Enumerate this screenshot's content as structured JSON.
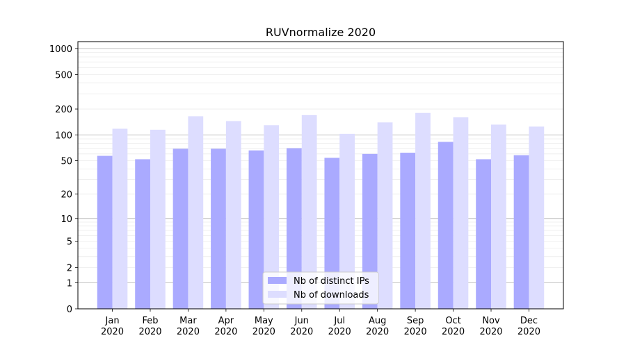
{
  "chart_data": {
    "type": "bar",
    "title": "RUVnormalize 2020",
    "xlabel": "",
    "ylabel": "",
    "y_scale": "log(1+y)",
    "ylim": [
      0,
      1200
    ],
    "y_ticks": [
      0,
      1,
      2,
      5,
      10,
      20,
      50,
      100,
      200,
      500,
      1000
    ],
    "y_tick_labels": [
      "0",
      "1",
      "2",
      "5",
      "10",
      "20",
      "50",
      "100",
      "200",
      "500",
      "1000"
    ],
    "grid": true,
    "legend_position": "bottom-center",
    "categories": [
      "Jan\n2020",
      "Feb\n2020",
      "Mar\n2020",
      "Apr\n2020",
      "May\n2020",
      "Jun\n2020",
      "Jul\n2020",
      "Aug\n2020",
      "Sep\n2020",
      "Oct\n2020",
      "Nov\n2020",
      "Dec\n2020"
    ],
    "series": [
      {
        "name": "Nb of distinct IPs",
        "color": "#aaaaff",
        "values": [
          57,
          52,
          69,
          69,
          66,
          70,
          54,
          60,
          62,
          83,
          52,
          58
        ]
      },
      {
        "name": "Nb of downloads",
        "color": "#ddddff",
        "values": [
          118,
          115,
          165,
          145,
          130,
          170,
          103,
          140,
          180,
          160,
          132,
          125
        ]
      }
    ]
  }
}
